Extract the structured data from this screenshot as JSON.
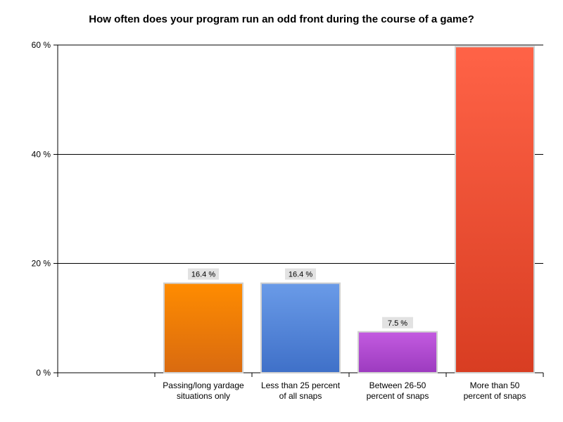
{
  "chart_data": {
    "type": "bar",
    "title": "How often does your program run an odd front during the course of a game?",
    "categories": [
      [
        "Passing/long yardage",
        "situations only"
      ],
      [
        "Less than 25 percent",
        "of all snaps"
      ],
      [
        "Between 26-50",
        "percent of snaps"
      ],
      [
        "More than 50",
        "percent of snaps"
      ]
    ],
    "values": [
      16.4,
      16.4,
      7.5,
      59.7
    ],
    "data_labels": [
      "16.4 %",
      "16.4 %",
      "7.5 %",
      ""
    ],
    "colors": [
      [
        "#ff8c00",
        "#d96a10"
      ],
      [
        "#6a9be8",
        "#3f70c8"
      ],
      [
        "#c35be0",
        "#9c3bbf"
      ],
      [
        "#ff6347",
        "#d83d22"
      ]
    ],
    "yticks": [
      0,
      20,
      40,
      60
    ],
    "ytick_labels": [
      "0 %",
      "20 %",
      "40 %",
      "60 %"
    ],
    "ylim": [
      0,
      60
    ],
    "grid": true,
    "legend": "none"
  }
}
